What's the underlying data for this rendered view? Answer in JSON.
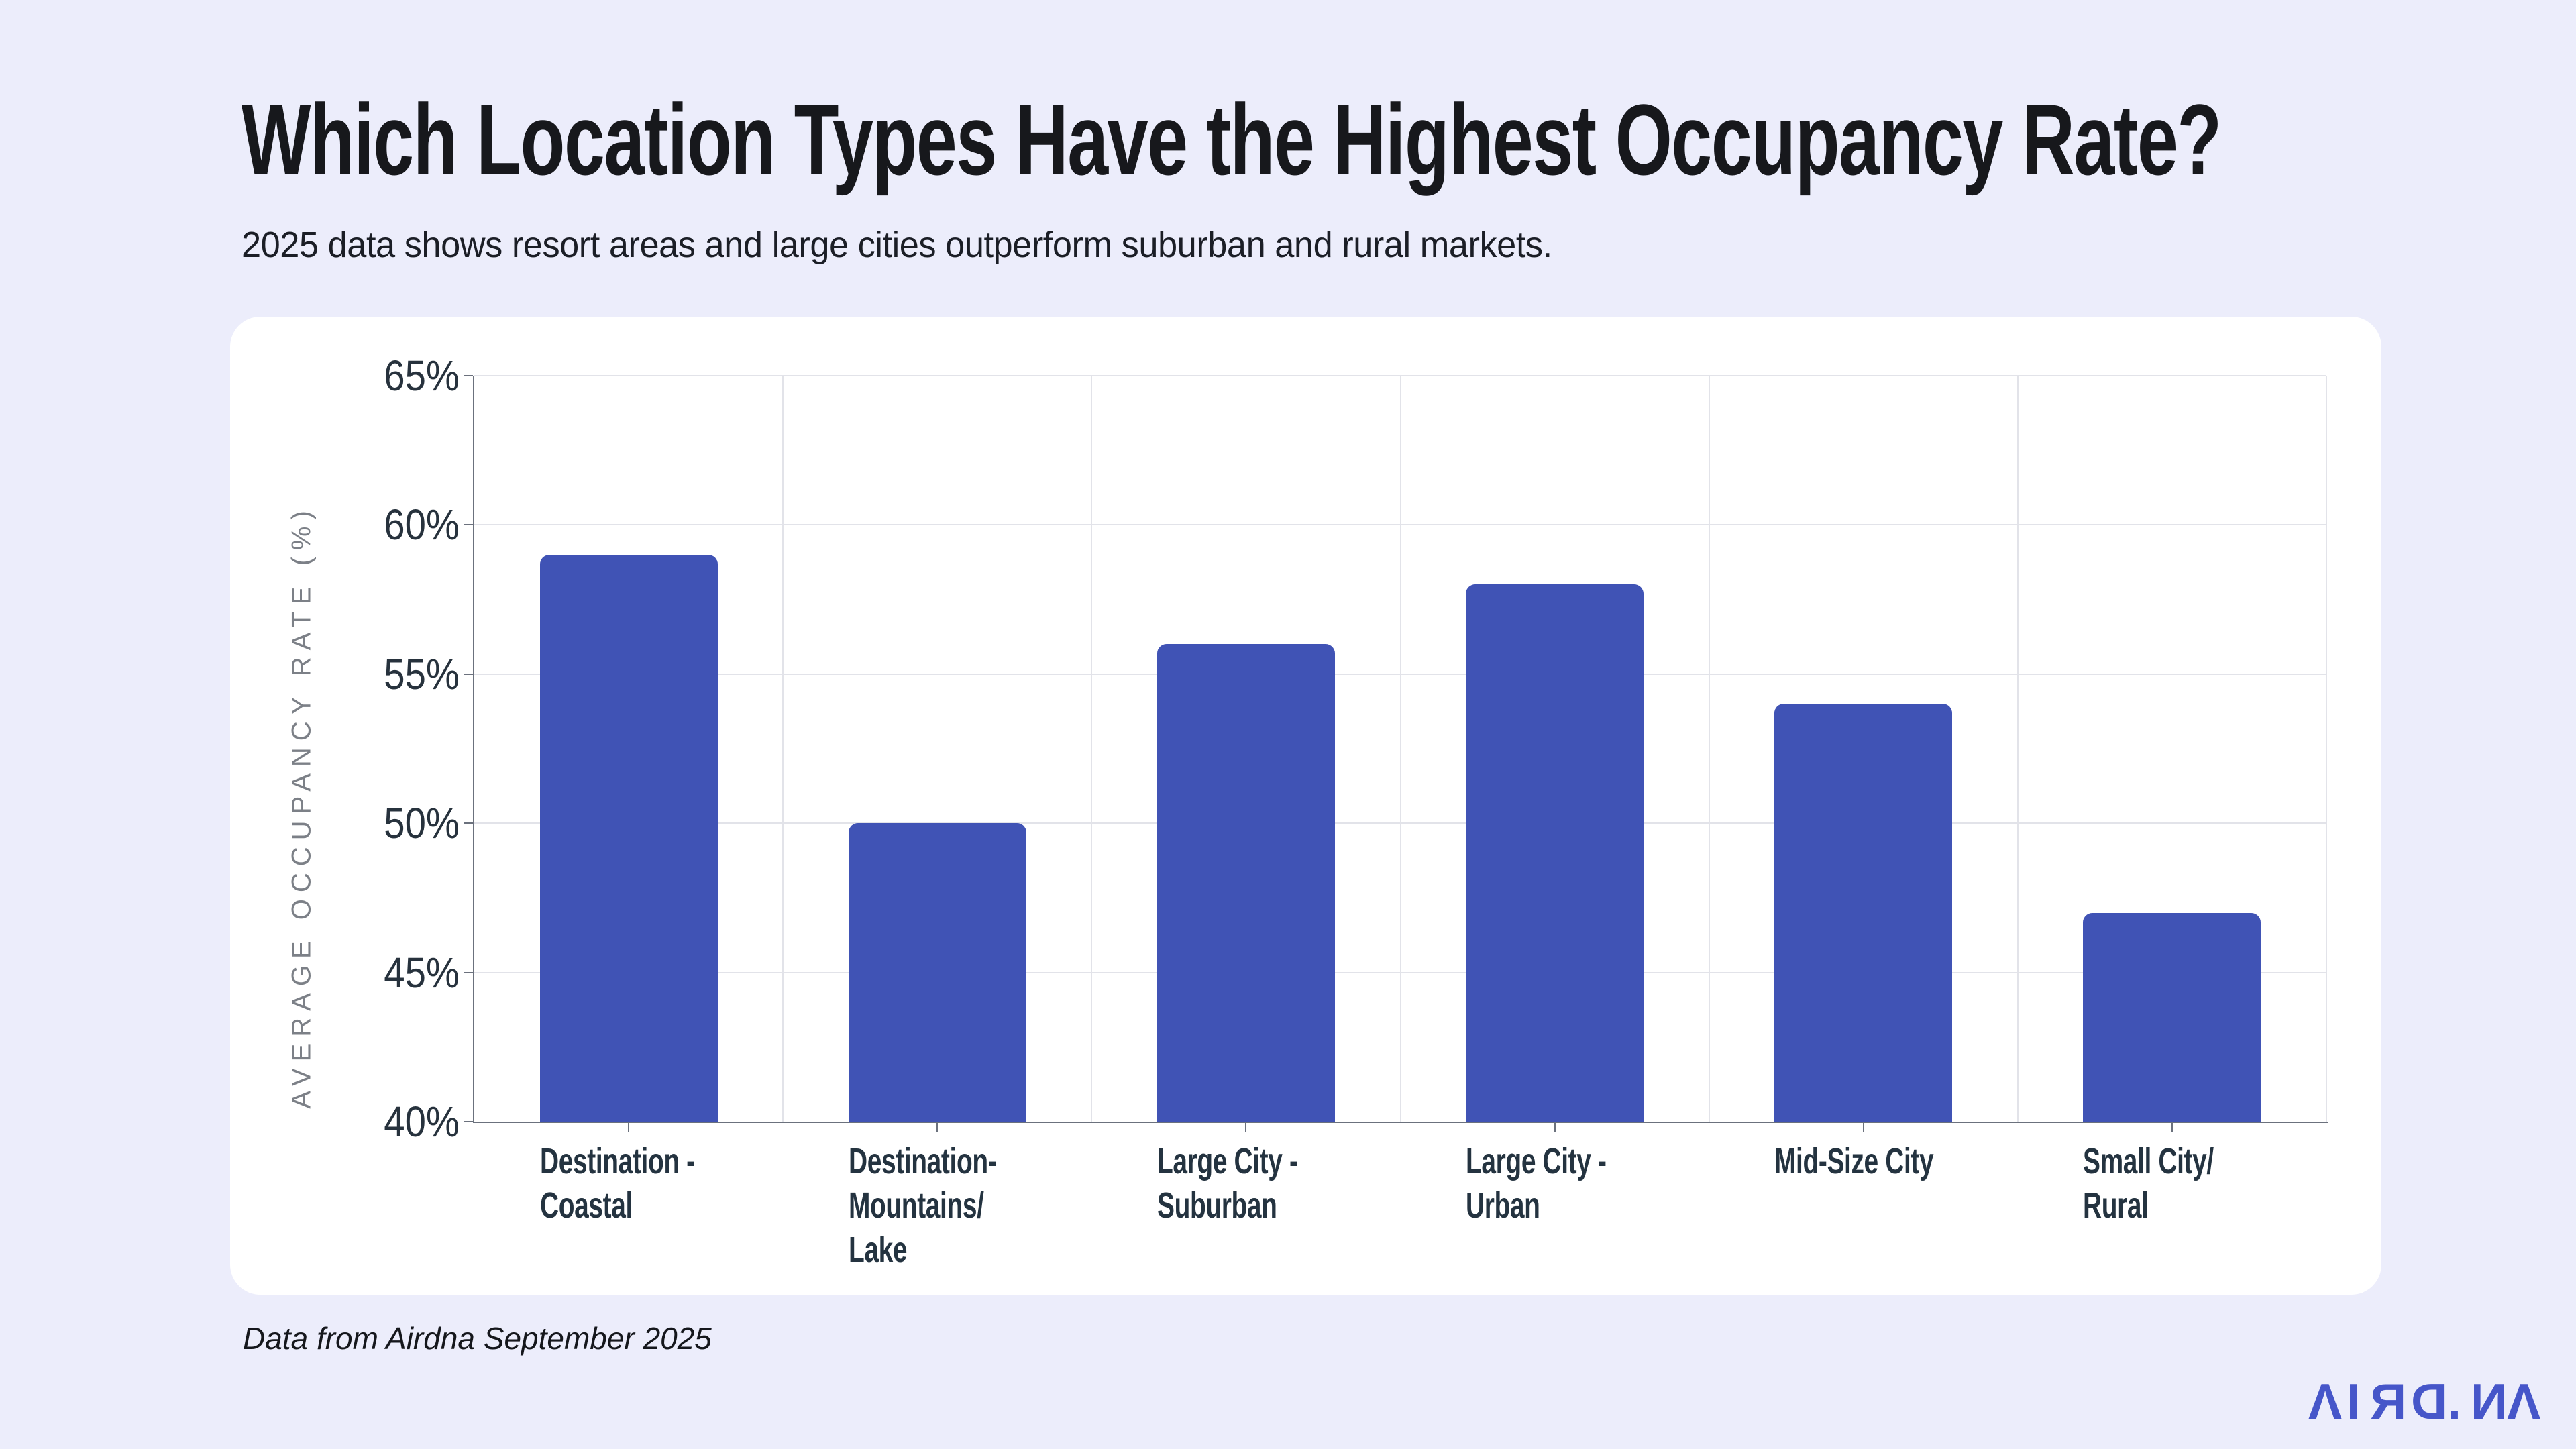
{
  "page": {
    "background": "#ecedfb"
  },
  "header": {
    "title": "Which Location Types Have the Highest Occupancy Rate?",
    "subtitle": "2025 data shows resort areas and large cities outperform suburban and rural markets."
  },
  "footer": {
    "source_note": "Data from Airdna September 2025"
  },
  "brand": {
    "name": "AIRDNA",
    "logo_text": "AIRD.NA",
    "logo_color": "#4656c9",
    "logo_chars": [
      {
        "ch": "Λ",
        "flip": false
      },
      {
        "ch": "I",
        "flip": false
      },
      {
        "ch": "R",
        "flip": true
      },
      {
        "ch": "D",
        "flip": true
      },
      {
        "ch": ".",
        "flip": false
      },
      {
        "ch": "N",
        "flip": true
      },
      {
        "ch": "Λ",
        "flip": false
      }
    ]
  },
  "chart_data": {
    "type": "bar",
    "title": "",
    "categories": [
      "Destination -\nCoastal",
      "Destination-\nMountains/\nLake",
      "Large City -\nSuburban",
      "Large City -\nUrban",
      "Mid-Size City",
      "Small City/\nRural"
    ],
    "values": [
      59,
      50,
      56,
      58,
      54,
      47
    ],
    "unit": "%",
    "xlabel": "",
    "ylabel": "AVERAGE OCCUPANCY RATE (%)",
    "ylim": [
      40,
      65
    ],
    "yticks": [
      40,
      45,
      50,
      55,
      60,
      65
    ],
    "ytick_labels": [
      "40%",
      "45%",
      "50%",
      "55%",
      "60%",
      "65%"
    ],
    "grid": true,
    "legend_position": "none",
    "bar_color": "#4053b5",
    "axis_color": "#6b717d",
    "gridline_color": "#e2e3e9",
    "tick_label_color": "#27323d",
    "category_label_color": "#243340",
    "ylabel_color": "#7c8087"
  }
}
